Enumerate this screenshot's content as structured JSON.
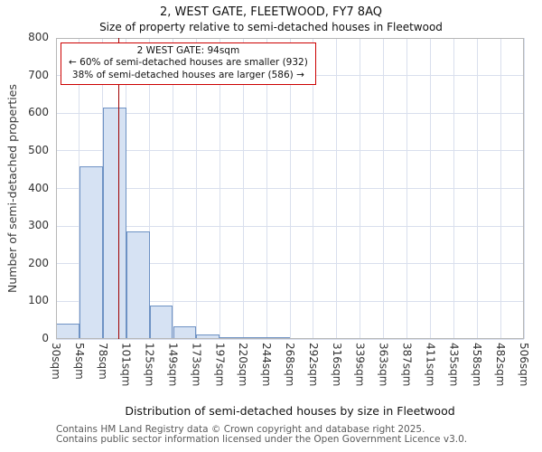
{
  "chart_data": {
    "type": "bar",
    "title": "2, WEST GATE, FLEETWOOD, FY7 8AQ",
    "subtitle": "Size of property relative to semi-detached houses in Fleetwood",
    "xlabel": "Distribution of semi-detached houses by size in Fleetwood",
    "ylabel": "Number of semi-detached properties",
    "ylim": [
      0,
      800
    ],
    "ytick_step": 100,
    "grid": true,
    "bin_edges_sqm": [
      30,
      54,
      78,
      101,
      125,
      149,
      173,
      197,
      220,
      244,
      268,
      292,
      316,
      339,
      363,
      387,
      411,
      435,
      458,
      482,
      506
    ],
    "categories": [
      "30sqm",
      "54sqm",
      "78sqm",
      "101sqm",
      "125sqm",
      "149sqm",
      "173sqm",
      "197sqm",
      "220sqm",
      "244sqm",
      "268sqm",
      "292sqm",
      "316sqm",
      "339sqm",
      "363sqm",
      "387sqm",
      "411sqm",
      "435sqm",
      "458sqm",
      "482sqm",
      "506sqm"
    ],
    "values": [
      42,
      460,
      615,
      285,
      90,
      33,
      12,
      6,
      4,
      4,
      0,
      0,
      0,
      0,
      0,
      0,
      0,
      0,
      0,
      0
    ],
    "marker": {
      "label": "2 WEST GATE",
      "value_sqm": 94
    },
    "annotation": {
      "line1": "2 WEST GATE: 94sqm",
      "line2": "← 60% of semi-detached houses are smaller (932)",
      "line3": "38% of semi-detached houses are larger (586) →"
    },
    "stats": {
      "smaller_pct": 60,
      "smaller_count": 932,
      "larger_pct": 38,
      "larger_count": 586
    },
    "colors": {
      "bar_fill": "#d6e2f3",
      "bar_stroke": "#6e92c4",
      "marker_line": "#a00000",
      "annotation_border": "#cc0000",
      "grid": "#d9dfed"
    }
  },
  "footer": {
    "line1": "Contains HM Land Registry data © Crown copyright and database right 2025.",
    "line2": "Contains public sector information licensed under the Open Government Licence v3.0."
  }
}
